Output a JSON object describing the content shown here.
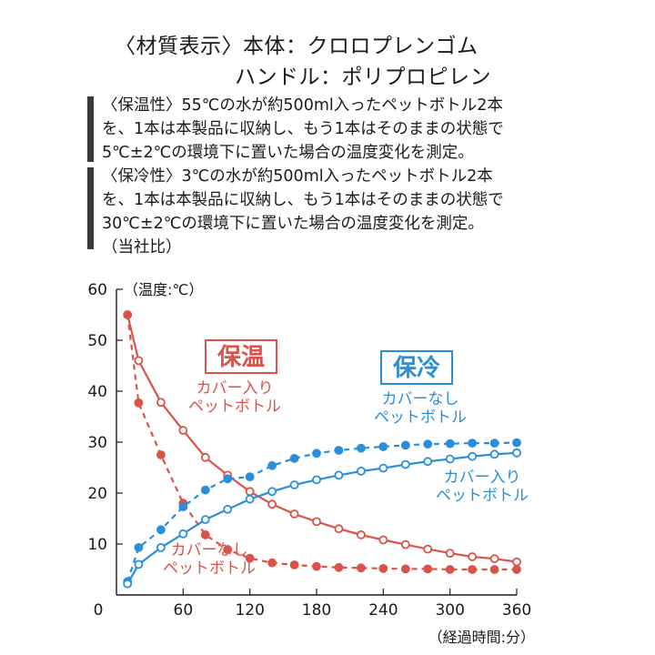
{
  "material": {
    "line1": "〈材質表示〉本体：クロロプレンゴム",
    "line2": "ハンドル：ポリプロピレン"
  },
  "description": {
    "lines": [
      "〈保温性〉55℃の水が約500ml入ったペットボトル2本",
      "を、1本は本製品に収納し、もう1本はそのままの状態で",
      "5℃±2℃の環境下に置いた場合の温度変化を測定。",
      "〈保冷性〉3℃の水が約500ml入ったペットボトル2本",
      "を、1本は本製品に収納し、もう1本はそのままの状態で",
      "30℃±2℃の環境下に置いた場合の温度変化を測定。",
      "（当社比）"
    ]
  },
  "colors": {
    "warm": "#d9534a",
    "cold": "#2a8fd8",
    "axis": "#1a1a1a"
  },
  "chart_data": {
    "type": "line",
    "ylabel": "（温度:℃）",
    "xlabel": "（経過時間:分）",
    "xlim": [
      0,
      360
    ],
    "ylim": [
      0,
      60
    ],
    "xticks": [
      0,
      60,
      120,
      180,
      240,
      300,
      360
    ],
    "yticks": [
      10,
      20,
      30,
      40,
      50,
      60
    ],
    "grid": false,
    "group_labels": {
      "warm": "保温",
      "cold": "保冷"
    },
    "series": [
      {
        "name": "カバー入り ペットボトル",
        "group": "warm",
        "style": "solid",
        "marker": "open",
        "color": "#d9534a",
        "label_lines": [
          "カバー入り",
          "ペットボトル"
        ],
        "x": [
          10,
          20,
          40,
          60,
          80,
          100,
          120,
          140,
          160,
          180,
          200,
          220,
          240,
          260,
          280,
          300,
          320,
          340,
          360
        ],
        "y": [
          55,
          46,
          37.8,
          32.3,
          27,
          23.5,
          20.3,
          17.8,
          15.9,
          14.4,
          13,
          11.8,
          10.8,
          9.9,
          9,
          8.2,
          7.5,
          7.1,
          6.5
        ]
      },
      {
        "name": "カバーなし ペットボトル",
        "group": "warm",
        "style": "dashed",
        "marker": "filled",
        "color": "#d9534a",
        "label_lines": [
          "カバーなし",
          "ペットボトル"
        ],
        "x": [
          10,
          20,
          40,
          60,
          80,
          100,
          120,
          140,
          160,
          180,
          200,
          220,
          240,
          260,
          280,
          300,
          320,
          340,
          360
        ],
        "y": [
          55,
          37.7,
          27.5,
          18,
          11.8,
          8.9,
          7.2,
          6.3,
          5.9,
          5.6,
          5.4,
          5.3,
          5.2,
          5.1,
          5.1,
          5.0,
          5.0,
          5.0,
          5.0
        ]
      },
      {
        "name": "カバーなし ペットボトル",
        "group": "cold",
        "style": "dashed",
        "marker": "filled",
        "color": "#2a8fd8",
        "label_lines": [
          "カバーなし",
          "ペットボトル"
        ],
        "x": [
          10,
          20,
          40,
          60,
          80,
          100,
          120,
          140,
          160,
          180,
          200,
          220,
          240,
          260,
          280,
          300,
          320,
          340,
          360
        ],
        "y": [
          2.6,
          9.3,
          12.8,
          17.3,
          20.6,
          22.8,
          23.2,
          25.4,
          26.8,
          27.8,
          28.4,
          28.8,
          29.1,
          29.4,
          29.6,
          29.7,
          29.8,
          29.8,
          29.9
        ]
      },
      {
        "name": "カバー入り ペットボトル",
        "group": "cold",
        "style": "solid",
        "marker": "open",
        "color": "#2a8fd8",
        "label_lines": [
          "カバー入り",
          "ペットボトル"
        ],
        "x": [
          10,
          20,
          40,
          60,
          80,
          100,
          120,
          140,
          160,
          180,
          200,
          220,
          240,
          260,
          280,
          300,
          320,
          340,
          360
        ],
        "y": [
          2.2,
          6,
          9.3,
          12,
          14.8,
          16.8,
          18.8,
          20.3,
          21.6,
          22.6,
          23.5,
          24.3,
          24.9,
          25.6,
          26.2,
          26.7,
          27.2,
          27.6,
          27.9
        ]
      }
    ]
  }
}
